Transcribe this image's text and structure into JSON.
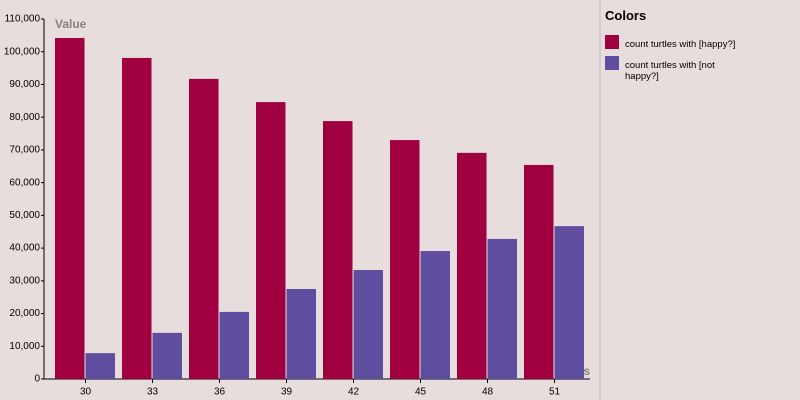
{
  "chart_data": {
    "type": "bar",
    "x_label": "Sets",
    "y_label": "Value",
    "legend_title": "Colors",
    "categories": [
      "30",
      "33",
      "36",
      "39",
      "42",
      "45",
      "48",
      "51"
    ],
    "series": [
      {
        "name": "count turtles with [happy?]",
        "color": "#a0003f",
        "values": [
          104200,
          98100,
          91700,
          84600,
          78800,
          73000,
          69100,
          65400
        ]
      },
      {
        "name": "count turtles with [not happy?]",
        "color": "#5f4ea0",
        "values": [
          7900,
          14100,
          20500,
          27500,
          33300,
          39100,
          42800,
          46700
        ]
      }
    ],
    "ylim": [
      0,
      110000
    ],
    "yticks": [
      0,
      {
        "value": 10000,
        "label": "10,000"
      },
      {
        "value": 20000,
        "label": "20,000"
      },
      {
        "value": 30000,
        "label": "30,000"
      },
      {
        "value": 40000,
        "label": "40,000"
      },
      {
        "value": 50000,
        "label": "50,000"
      },
      {
        "value": 60000,
        "label": "60,000"
      },
      {
        "value": 70000,
        "label": "70,000"
      },
      {
        "value": 80000,
        "label": "80,000"
      },
      {
        "value": 90000,
        "label": "90,000"
      },
      {
        "value": 100000,
        "label": "100,000"
      },
      {
        "value": 110000,
        "label": "110,000"
      }
    ],
    "legend_position": "right"
  }
}
